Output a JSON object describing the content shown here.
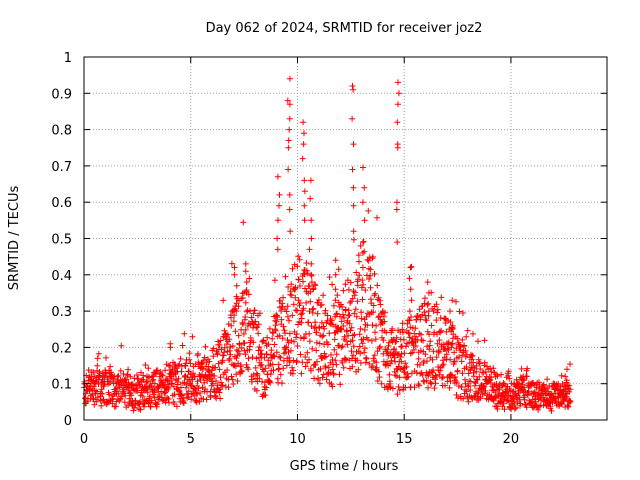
{
  "chart_data": {
    "type": "scatter",
    "title": "Day 062 of 2024, SRMTID for receiver joz2",
    "xlabel": "GPS time / hours",
    "ylabel": "SRMTID / TECUs",
    "xlim": [
      0,
      24.5
    ],
    "ylim": [
      0,
      1
    ],
    "x_ticks": [
      0,
      5,
      10,
      15,
      20
    ],
    "x_tick_labels": [
      "0",
      "5",
      "10",
      "15",
      "20"
    ],
    "y_ticks": [
      0,
      0.1,
      0.2,
      0.3,
      0.4,
      0.5,
      0.6,
      0.7,
      0.8,
      0.9,
      1
    ],
    "y_tick_labels": [
      "0",
      "0.1",
      "0.2",
      "0.3",
      "0.4",
      "0.5",
      "0.6",
      "0.7",
      "0.8",
      "0.9",
      "1"
    ],
    "grid": true,
    "marker": "+",
    "series": [
      {
        "name": "SRMTID",
        "color": "#ff0000",
        "profile_hours": [
          0,
          1,
          2,
          3,
          4,
          5,
          6,
          7,
          7.5,
          8,
          8.5,
          9,
          9.5,
          10,
          10.5,
          11,
          11.5,
          12,
          12.5,
          13,
          13.5,
          14,
          14.5,
          15,
          15.5,
          16,
          16.5,
          17,
          17.5,
          18,
          18.5,
          19,
          19.5,
          20,
          20.5,
          21,
          22,
          22.8
        ],
        "profile_typical_tecu": [
          0.08,
          0.09,
          0.08,
          0.08,
          0.1,
          0.11,
          0.12,
          0.2,
          0.25,
          0.2,
          0.14,
          0.2,
          0.24,
          0.3,
          0.28,
          0.22,
          0.2,
          0.22,
          0.27,
          0.32,
          0.3,
          0.2,
          0.16,
          0.17,
          0.2,
          0.21,
          0.2,
          0.18,
          0.15,
          0.12,
          0.11,
          0.09,
          0.08,
          0.07,
          0.08,
          0.07,
          0.06,
          0.07
        ],
        "peaks": [
          {
            "x": 9.6,
            "values": [
              0.94,
              0.88,
              0.87,
              0.83,
              0.8,
              0.77,
              0.75,
              0.69,
              0.62,
              0.58,
              0.52
            ]
          },
          {
            "x": 9.1,
            "values": [
              0.67,
              0.62,
              0.59,
              0.55,
              0.5,
              0.47
            ]
          },
          {
            "x": 10.3,
            "values": [
              0.82,
              0.79,
              0.76,
              0.72,
              0.66,
              0.63,
              0.59,
              0.55
            ]
          },
          {
            "x": 10.6,
            "values": [
              0.66,
              0.61,
              0.55,
              0.5,
              0.47,
              0.43
            ]
          },
          {
            "x": 12.6,
            "values": [
              0.92,
              0.91,
              0.83,
              0.76,
              0.69,
              0.64,
              0.59,
              0.52
            ]
          },
          {
            "x": 13.1,
            "values": [
              0.64,
              0.6,
              0.55,
              0.49,
              0.46,
              0.42
            ]
          },
          {
            "x": 14.7,
            "values": [
              0.93,
              0.9,
              0.87,
              0.82,
              0.76,
              0.75,
              0.6,
              0.58,
              0.49
            ]
          },
          {
            "x": 7.1,
            "values": [
              0.42,
              0.4,
              0.37,
              0.34,
              0.3
            ]
          },
          {
            "x": 7.6,
            "values": [
              0.43,
              0.41,
              0.38,
              0.35
            ]
          },
          {
            "x": 11.8,
            "values": [
              0.44,
              0.4,
              0.36,
              0.33
            ]
          },
          {
            "x": 15.3,
            "values": [
              0.42,
              0.39,
              0.36,
              0.33,
              0.3
            ]
          },
          {
            "x": 16.1,
            "values": [
              0.38,
              0.35,
              0.32,
              0.3
            ]
          },
          {
            "x": 17.2,
            "values": [
              0.33,
              0.3,
              0.27,
              0.25
            ]
          },
          {
            "x": 4.0,
            "values": [
              0.21,
              0.2
            ]
          },
          {
            "x": 22.6,
            "values": [
              0.14,
              0.12
            ]
          }
        ]
      }
    ]
  }
}
